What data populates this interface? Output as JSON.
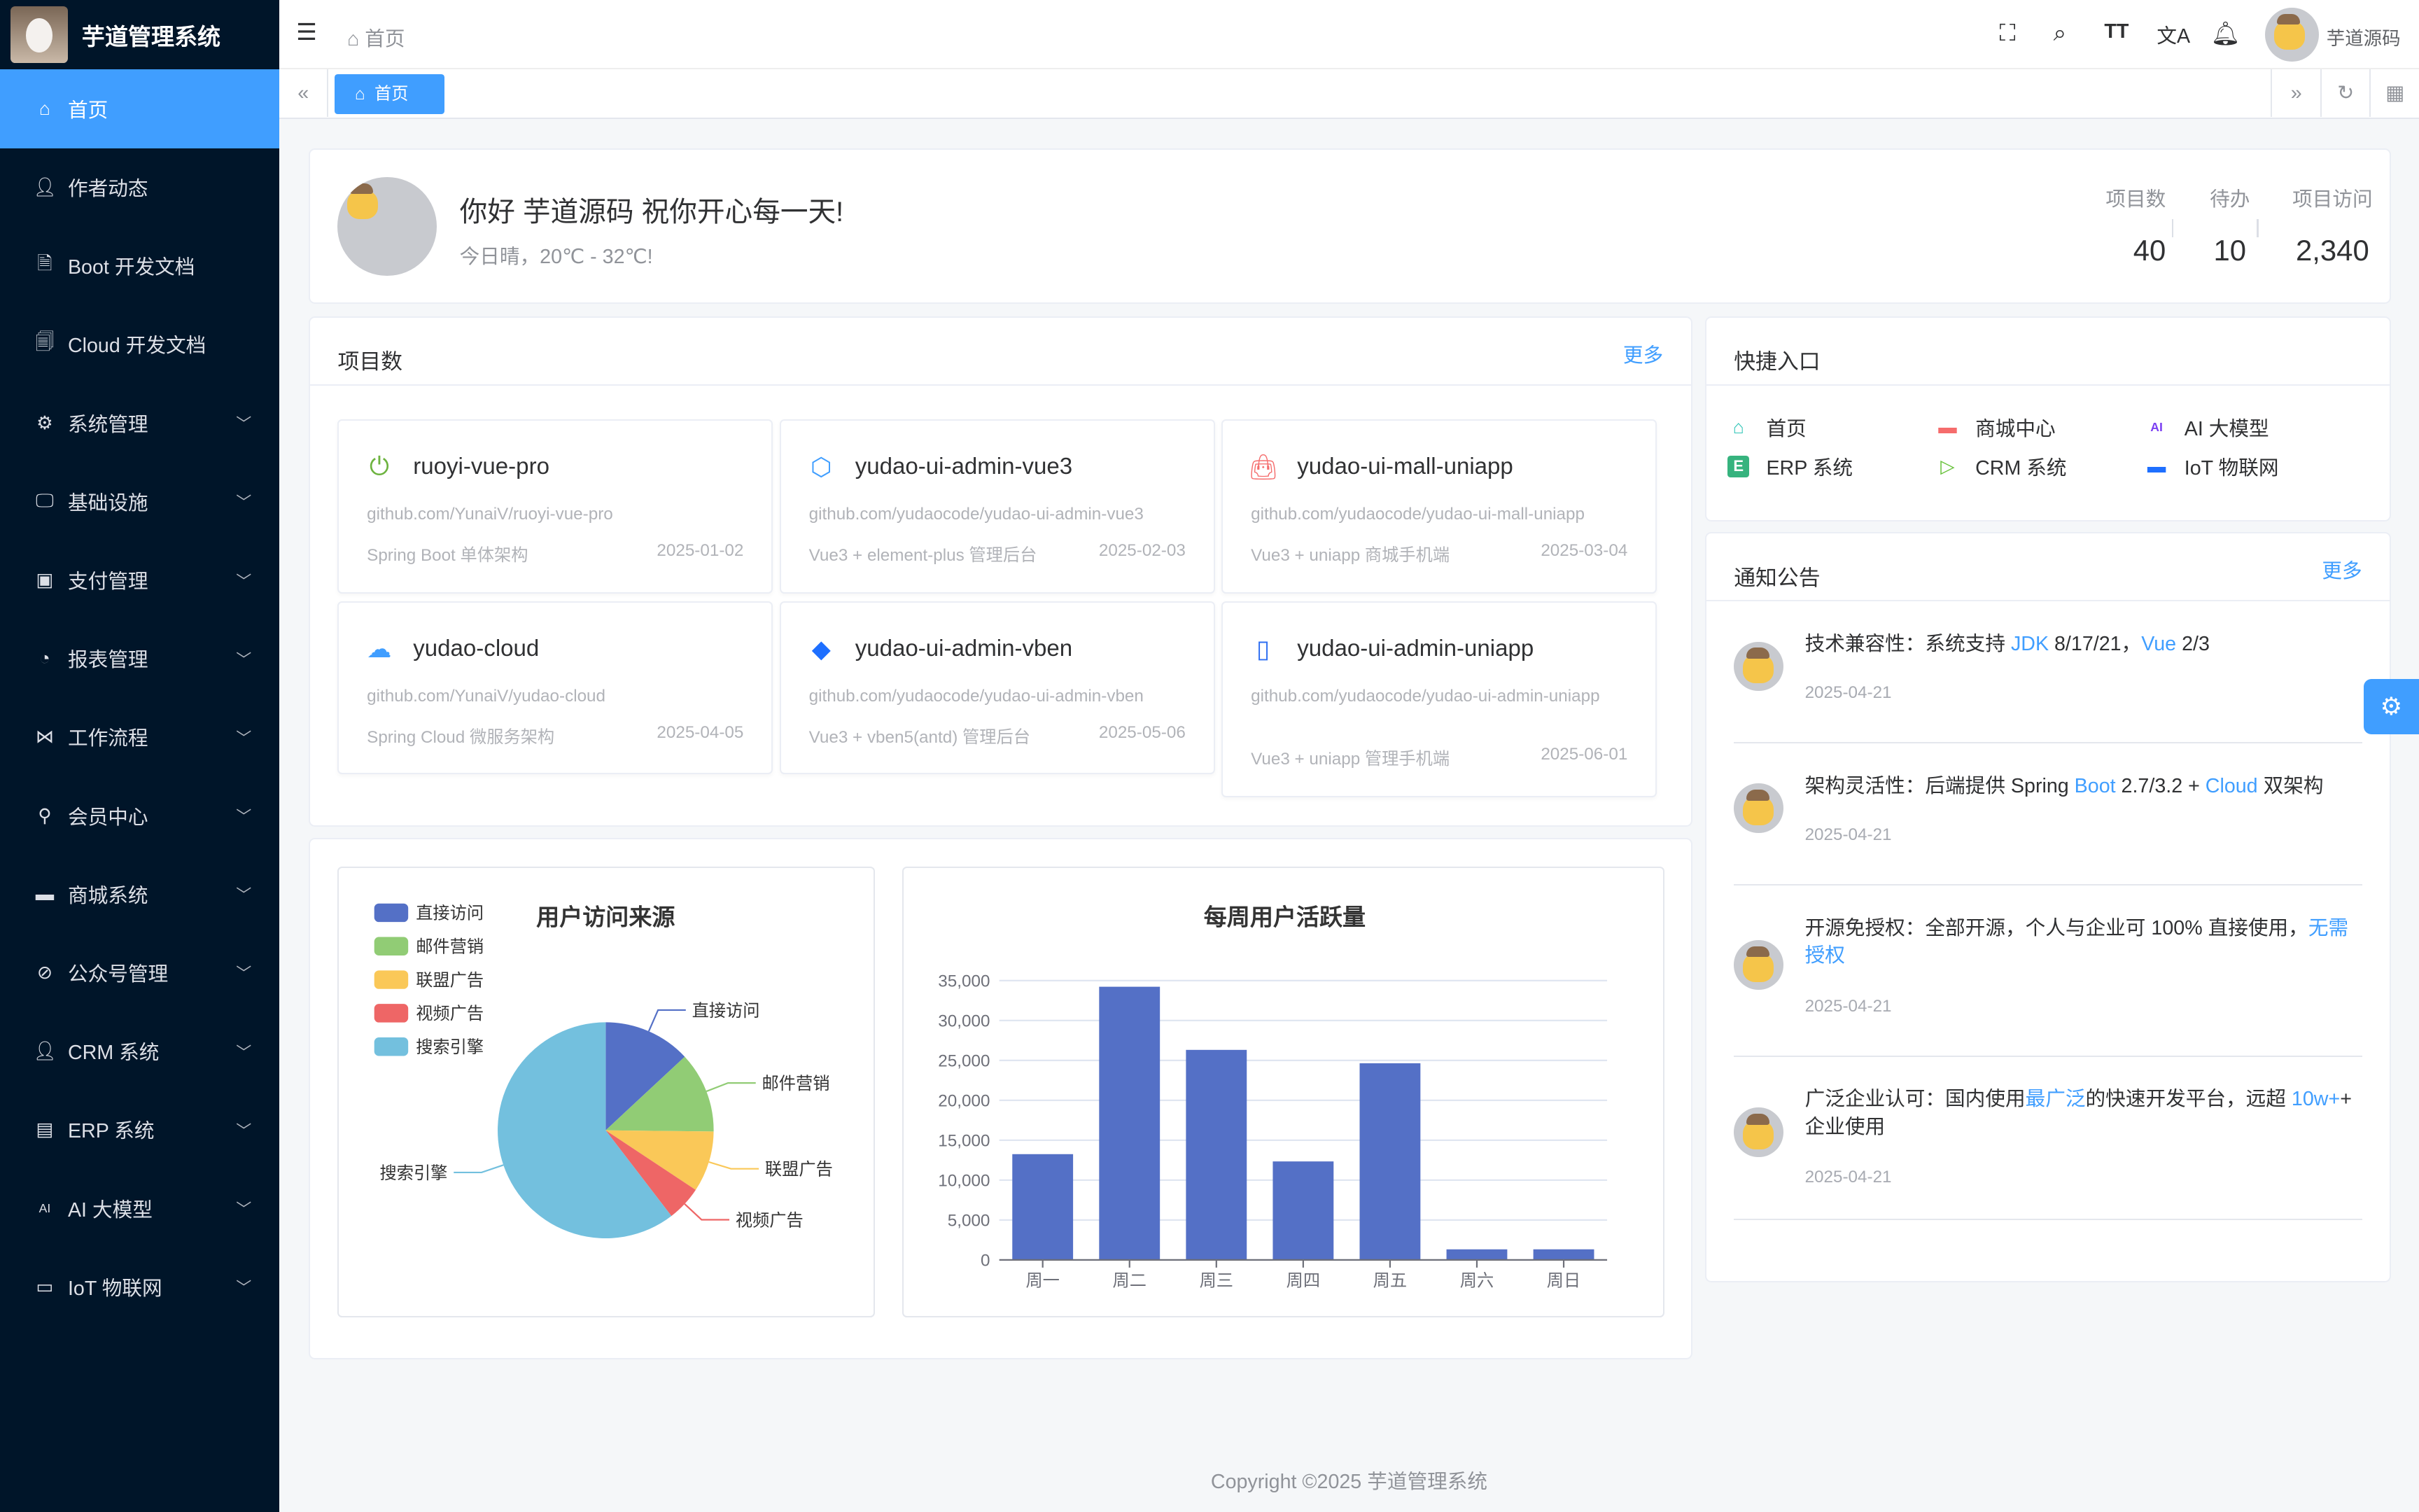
{
  "app": {
    "title": "芋道管理系统"
  },
  "sidebar": {
    "items": [
      {
        "label": "首页",
        "icon": "home-icon",
        "active": true,
        "expandable": false
      },
      {
        "label": "作者动态",
        "icon": "user-icon",
        "expandable": false
      },
      {
        "label": "Boot 开发文档",
        "icon": "document-icon",
        "expandable": false
      },
      {
        "label": "Cloud 开发文档",
        "icon": "documents-icon",
        "expandable": false
      },
      {
        "label": "系统管理",
        "icon": "gear-icon",
        "expandable": true
      },
      {
        "label": "基础设施",
        "icon": "monitor-icon",
        "expandable": true
      },
      {
        "label": "支付管理",
        "icon": "payment-icon",
        "expandable": true
      },
      {
        "label": "报表管理",
        "icon": "pie-chart-icon",
        "expandable": true
      },
      {
        "label": "工作流程",
        "icon": "workflow-icon",
        "expandable": true
      },
      {
        "label": "会员中心",
        "icon": "bicycle-icon",
        "expandable": true
      },
      {
        "label": "商城系统",
        "icon": "shop-icon",
        "expandable": true
      },
      {
        "label": "公众号管理",
        "icon": "compass-icon",
        "expandable": true
      },
      {
        "label": "CRM 系统",
        "icon": "user-icon",
        "expandable": true
      },
      {
        "label": "ERP 系统",
        "icon": "store-icon",
        "expandable": true
      },
      {
        "label": "AI 大模型",
        "icon": "ai-icon",
        "expandable": true
      },
      {
        "label": "IoT 物联网",
        "icon": "device-icon",
        "expandable": true
      }
    ]
  },
  "header": {
    "breadcrumb": "首页",
    "username": "芋道源码"
  },
  "tabs": [
    {
      "label": "首页",
      "active": true
    }
  ],
  "welcome": {
    "greeting": "你好 芋道源码 祝你开心每一天!",
    "weather": "今日晴，20℃ - 32℃!",
    "stats": [
      {
        "label": "项目数",
        "value": "40"
      },
      {
        "label": "待办",
        "value": "10"
      },
      {
        "label": "项目访问",
        "value": "2,340"
      }
    ]
  },
  "projects": {
    "title": "项目数",
    "more": "更多",
    "items": [
      {
        "name": "ruoyi-vue-pro",
        "icon": "spring-icon",
        "color": "#6db33f",
        "url": "github.com/YunaiV/ruoyi-vue-pro",
        "desc": "Spring Boot 单体架构",
        "date": "2025-01-02"
      },
      {
        "name": "yudao-ui-admin-vue3",
        "icon": "vite-icon",
        "color": "#409eff",
        "url": "github.com/yudaocode/yudao-ui-admin-vue3",
        "desc": "Vue3 + element-plus 管理后台",
        "date": "2025-02-03"
      },
      {
        "name": "yudao-ui-mall-uniapp",
        "icon": "shopping-bag-icon",
        "color": "#f56c6c",
        "url": "github.com/yudaocode/yudao-ui-mall-uniapp",
        "desc": "Vue3 + uniapp 商城手机端",
        "date": "2025-03-04"
      },
      {
        "name": "yudao-cloud",
        "icon": "cloud-icon",
        "color": "#409eff",
        "url": "github.com/YunaiV/yudao-cloud",
        "desc": "Spring Cloud 微服务架构",
        "date": "2025-04-05"
      },
      {
        "name": "yudao-ui-admin-vben",
        "icon": "vben-icon",
        "color": "#1e6fff",
        "url": "github.com/yudaocode/yudao-ui-admin-vben",
        "desc": "Vue3 + vben5(antd) 管理后台",
        "date": "2025-05-06"
      },
      {
        "name": "yudao-ui-admin-uniapp",
        "icon": "mobile-icon",
        "color": "#2f6ff2",
        "url": "github.com/yudaocode/yudao-ui-admin-uniapp",
        "desc": "Vue3 + uniapp 管理手机端",
        "date": "2025-06-01"
      }
    ]
  },
  "quick": {
    "title": "快捷入口",
    "items": [
      {
        "label": "首页",
        "icon": "home-icon",
        "color": "#2fc5b7"
      },
      {
        "label": "商城中心",
        "icon": "shop-icon",
        "color": "#f56c6c"
      },
      {
        "label": "AI 大模型",
        "icon": "ai-icon",
        "color": "#7b3ff2"
      },
      {
        "label": "ERP 系统",
        "icon": "erp-icon",
        "color": "#36b37e"
      },
      {
        "label": "CRM 系统",
        "icon": "crm-icon",
        "color": "#67c23a"
      },
      {
        "label": "IoT 物联网",
        "icon": "iot-icon",
        "color": "#1e6fff"
      }
    ]
  },
  "notices": {
    "title": "通知公告",
    "more": "更多",
    "items": [
      {
        "segments": [
          {
            "t": "技术兼容性：系统支持 "
          },
          {
            "t": "JDK",
            "hl": true
          },
          {
            "t": " 8/17/21，"
          },
          {
            "t": "Vue",
            "hl": true
          },
          {
            "t": " 2/3"
          }
        ],
        "date": "2025-04-21"
      },
      {
        "segments": [
          {
            "t": "架构灵活性：后端提供 Spring "
          },
          {
            "t": "Boot",
            "hl": true
          },
          {
            "t": " 2.7/3.2 + "
          },
          {
            "t": "Cloud",
            "hl": true
          },
          {
            "t": " 双架构"
          }
        ],
        "date": "2025-04-21"
      },
      {
        "segments": [
          {
            "t": "开源免授权：全部开源，个人与企业可 100% 直接使用，"
          },
          {
            "t": "无需授权",
            "hl": true
          }
        ],
        "date": "2025-04-21"
      },
      {
        "segments": [
          {
            "t": "广泛企业认可：国内使用"
          },
          {
            "t": "最广泛",
            "hl": true
          },
          {
            "t": "的快速开发平台，远超 "
          },
          {
            "t": "10w+",
            "hl": true
          },
          {
            "t": "+ 企业使用"
          }
        ],
        "date": "2025-04-21"
      }
    ]
  },
  "chart_data": [
    {
      "type": "pie",
      "title": "用户访问来源",
      "legend": "top-left",
      "categories": [
        "直接访问",
        "邮件营销",
        "联盟广告",
        "视频广告",
        "搜索引擎"
      ],
      "values": [
        335,
        310,
        234,
        135,
        1548
      ],
      "colors": [
        "#5470c6",
        "#91cc75",
        "#fac858",
        "#ee6666",
        "#73c0de"
      ]
    },
    {
      "type": "bar",
      "title": "每周用户活跃量",
      "categories": [
        "周一",
        "周二",
        "周三",
        "周四",
        "周五",
        "周六",
        "周日"
      ],
      "values": [
        13253,
        34235,
        26321,
        12340,
        24643,
        1322,
        1324
      ],
      "ylim": [
        0,
        35000
      ],
      "yticks": [
        "0",
        "5,000",
        "10,000",
        "15,000",
        "20,000",
        "25,000",
        "30,000",
        "35,000"
      ],
      "color": "#5470c6",
      "grid": true
    }
  ],
  "footer": {
    "copyright": "Copyright ©2025 芋道管理系统"
  }
}
